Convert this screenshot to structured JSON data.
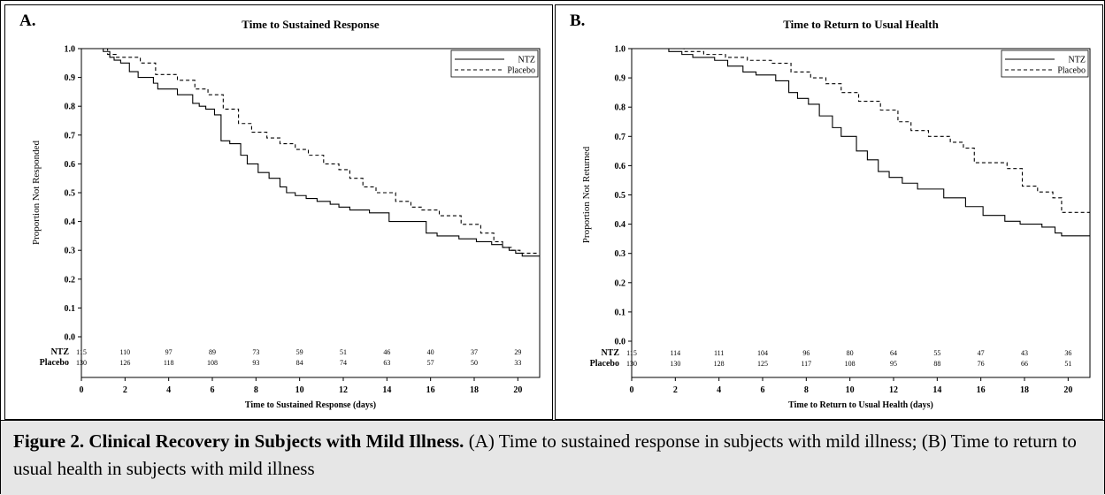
{
  "caption": {
    "title": "Figure 2. Clinical Recovery in Subjects with Mild Illness.",
    "text": " (A) Time to sustained response in subjects with mild illness; (B) Time to return to usual health in subjects with mild illness"
  },
  "chart_data": [
    {
      "panel_label": "A.",
      "type": "line",
      "title": "Time to Sustained Response",
      "xlabel": "Time to Sustained Response (days)",
      "ylabel": "Proportion Not Responded",
      "xlim": [
        0,
        21
      ],
      "ylim": [
        0,
        1.0
      ],
      "x_ticks": [
        "0",
        "2",
        "4",
        "6",
        "8",
        "10",
        "12",
        "14",
        "16",
        "18",
        "20"
      ],
      "y_ticks": [
        "0.0",
        "0.1",
        "0.2",
        "0.3",
        "0.4",
        "0.5",
        "0.6",
        "0.7",
        "0.8",
        "0.9",
        "1.0"
      ],
      "legend_position": "top-right",
      "series": [
        {
          "name": "NTZ",
          "style": "solid",
          "x": [
            0,
            1,
            1.3,
            1.5,
            1.8,
            2.2,
            2.6,
            3.3,
            3.5,
            4.4,
            5.1,
            5.4,
            5.7,
            6.1,
            6.4,
            6.8,
            7.3,
            7.6,
            8.1,
            8.6,
            9.1,
            9.4,
            9.8,
            10.3,
            10.8,
            11.4,
            11.8,
            12.3,
            13.2,
            14.1,
            15.8,
            16.3,
            17.3,
            18.1,
            18.8,
            19.3,
            19.6,
            19.9,
            20.2,
            21
          ],
          "y": [
            1.0,
            0.99,
            0.97,
            0.96,
            0.95,
            0.92,
            0.9,
            0.88,
            0.86,
            0.84,
            0.81,
            0.8,
            0.79,
            0.77,
            0.68,
            0.67,
            0.63,
            0.6,
            0.57,
            0.55,
            0.52,
            0.5,
            0.49,
            0.48,
            0.47,
            0.46,
            0.45,
            0.44,
            0.43,
            0.4,
            0.36,
            0.35,
            0.34,
            0.33,
            0.32,
            0.31,
            0.3,
            0.29,
            0.28,
            0.28
          ]
        },
        {
          "name": "Placebo",
          "style": "dashed",
          "x": [
            0,
            1.2,
            1.6,
            2.7,
            3.4,
            4.4,
            5.2,
            5.8,
            6.5,
            7.2,
            7.8,
            8.5,
            9.1,
            9.8,
            10.4,
            11.1,
            11.8,
            12.3,
            12.9,
            13.5,
            14.4,
            15.1,
            15.6,
            16.4,
            17.4,
            18.3,
            18.9,
            19.3,
            19.7,
            20.1,
            21
          ],
          "y": [
            1.0,
            0.98,
            0.97,
            0.95,
            0.91,
            0.89,
            0.86,
            0.84,
            0.79,
            0.74,
            0.71,
            0.69,
            0.67,
            0.65,
            0.63,
            0.6,
            0.58,
            0.55,
            0.52,
            0.5,
            0.47,
            0.45,
            0.44,
            0.42,
            0.39,
            0.36,
            0.33,
            0.31,
            0.3,
            0.29,
            0.29
          ]
        }
      ],
      "risk_table": {
        "rows": [
          {
            "label": "NTZ",
            "values": [
              "115",
              "110",
              "97",
              "89",
              "73",
              "59",
              "51",
              "46",
              "40",
              "37",
              "29"
            ]
          },
          {
            "label": "Placebo",
            "values": [
              "130",
              "126",
              "118",
              "108",
              "93",
              "84",
              "74",
              "63",
              "57",
              "50",
              "33"
            ]
          }
        ]
      }
    },
    {
      "panel_label": "B.",
      "type": "line",
      "title": "Time to Return to Usual Health",
      "xlabel": "Time to Return to Usual Health (days)",
      "ylabel": "Proportion Not Returned",
      "xlim": [
        0,
        21
      ],
      "ylim": [
        0,
        1.0
      ],
      "x_ticks": [
        "0",
        "2",
        "4",
        "6",
        "8",
        "10",
        "12",
        "14",
        "16",
        "18",
        "20"
      ],
      "y_ticks": [
        "0.0",
        "0.1",
        "0.2",
        "0.3",
        "0.4",
        "0.5",
        "0.6",
        "0.7",
        "0.8",
        "0.9",
        "1.0"
      ],
      "legend_position": "top-right",
      "series": [
        {
          "name": "NTZ",
          "style": "solid",
          "x": [
            0,
            1.7,
            2.3,
            2.8,
            3.8,
            4.4,
            5.1,
            5.7,
            6.6,
            7.2,
            7.6,
            8.1,
            8.6,
            9.2,
            9.6,
            10.3,
            10.8,
            11.3,
            11.8,
            12.4,
            13.1,
            14.3,
            15.3,
            16.1,
            17.1,
            17.8,
            18.8,
            19.4,
            19.7,
            21
          ],
          "y": [
            1.0,
            0.99,
            0.98,
            0.97,
            0.96,
            0.94,
            0.92,
            0.91,
            0.89,
            0.85,
            0.83,
            0.81,
            0.77,
            0.73,
            0.7,
            0.65,
            0.62,
            0.58,
            0.56,
            0.54,
            0.52,
            0.49,
            0.46,
            0.43,
            0.41,
            0.4,
            0.39,
            0.37,
            0.36,
            0.36
          ]
        },
        {
          "name": "Placebo",
          "style": "dashed",
          "x": [
            0,
            2.4,
            3.3,
            4.3,
            5.3,
            6.4,
            7.3,
            8.2,
            8.9,
            9.6,
            10.4,
            11.4,
            12.2,
            12.8,
            13.6,
            14.6,
            15.2,
            15.7,
            17.2,
            17.9,
            18.6,
            19.3,
            19.7,
            21
          ],
          "y": [
            1.0,
            0.99,
            0.98,
            0.97,
            0.96,
            0.95,
            0.92,
            0.9,
            0.88,
            0.85,
            0.82,
            0.79,
            0.75,
            0.72,
            0.7,
            0.68,
            0.66,
            0.61,
            0.59,
            0.53,
            0.51,
            0.49,
            0.44,
            0.44
          ]
        }
      ],
      "risk_table": {
        "rows": [
          {
            "label": "NTZ",
            "values": [
              "115",
              "114",
              "111",
              "104",
              "96",
              "80",
              "64",
              "55",
              "47",
              "43",
              "36"
            ]
          },
          {
            "label": "Placebo",
            "values": [
              "130",
              "130",
              "128",
              "125",
              "117",
              "108",
              "95",
              "88",
              "76",
              "66",
              "51"
            ]
          }
        ]
      }
    }
  ]
}
